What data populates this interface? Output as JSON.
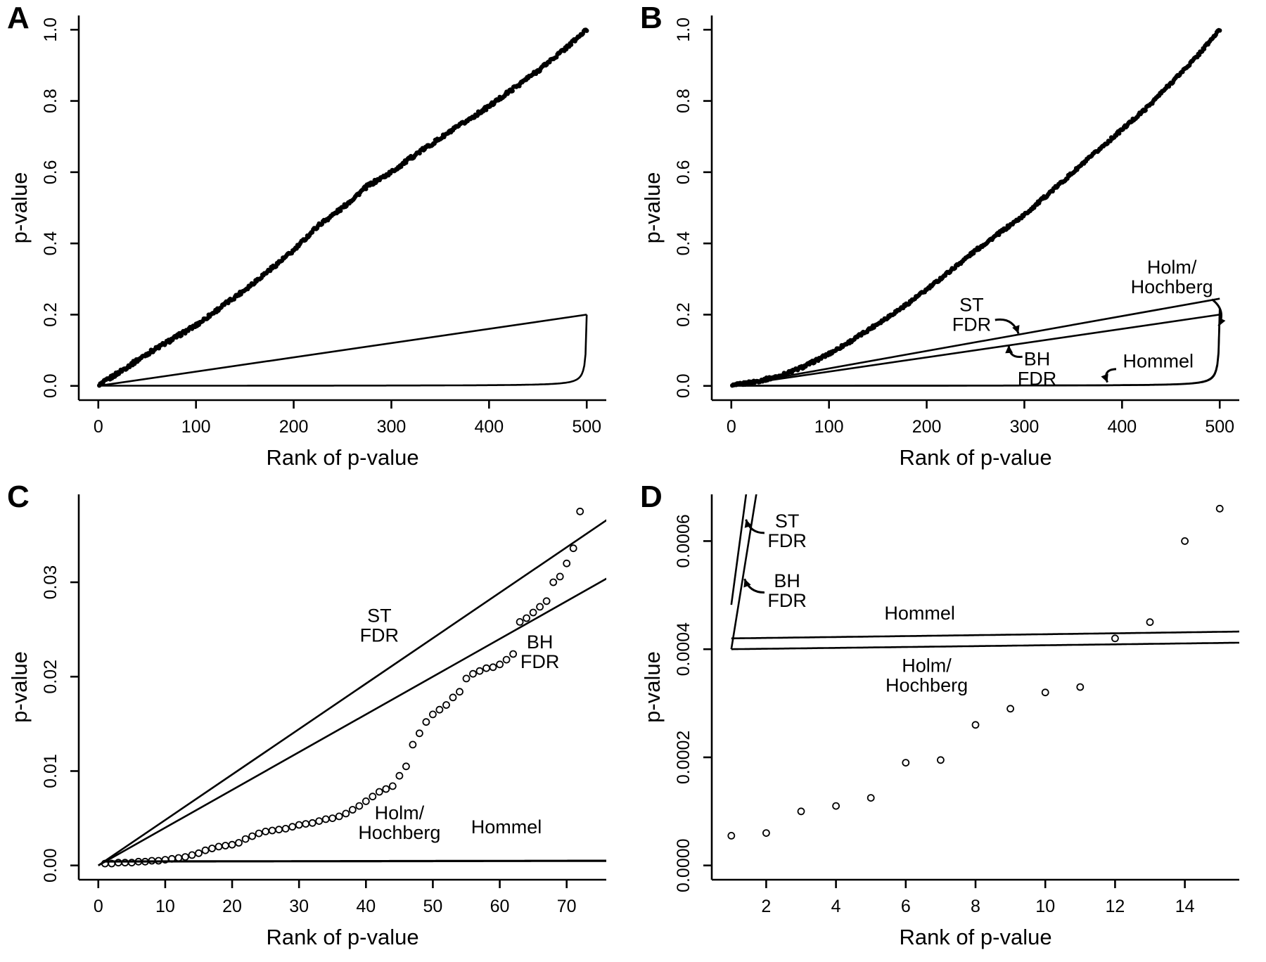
{
  "figure": {
    "background_color": "#ffffff",
    "ink_color": "#000000",
    "description": "Four-panel figure of sorted p-values versus rank with multiple-testing correction threshold lines (ST FDR, BH FDR, Holm/Hochberg, Hommel)"
  },
  "chart_data": [
    {
      "panel": "A",
      "type": "scatter",
      "title": "",
      "xlabel": "Rank of p-value",
      "ylabel": "p-value",
      "xlim": [
        0,
        500
      ],
      "ylim": [
        0,
        1
      ],
      "xticks": [
        0,
        100,
        200,
        300,
        400,
        500
      ],
      "xtick_labels": [
        "0",
        "100",
        "200",
        "300",
        "400",
        "500"
      ],
      "yticks": [
        0,
        0.2,
        0.4,
        0.6,
        0.8,
        1.0
      ],
      "ytick_labels": [
        "0.0",
        "0.2",
        "0.4",
        "0.6",
        "0.8",
        "1.0"
      ],
      "grid": false,
      "legend": "none",
      "points_dense": {
        "n": 500,
        "marker": "filled-dot",
        "jitter": 0.005,
        "anchors_x": [
          0,
          25,
          50,
          75,
          100,
          125,
          150,
          175,
          200,
          225,
          250,
          275,
          300,
          325,
          350,
          375,
          400,
          425,
          450,
          475,
          500
        ],
        "anchors_y": [
          0,
          0.045,
          0.09,
          0.13,
          0.17,
          0.22,
          0.27,
          0.325,
          0.38,
          0.45,
          0.5,
          0.56,
          0.6,
          0.65,
          0.695,
          0.74,
          0.785,
          0.835,
          0.885,
          0.94,
          1.0
        ]
      },
      "lines": [
        {
          "name": "BH FDR threshold",
          "type": "segment",
          "x": [
            0,
            500
          ],
          "y": [
            0,
            0.2
          ]
        },
        {
          "name": "Holm Hochberg Hommel threshold",
          "type": "holm",
          "alpha": 0.2,
          "m": 500,
          "xrange": [
            1,
            500
          ]
        }
      ],
      "annotations": []
    },
    {
      "panel": "B",
      "type": "scatter",
      "title": "",
      "xlabel": "Rank of p-value",
      "ylabel": "p-value",
      "xlim": [
        0,
        500
      ],
      "ylim": [
        0,
        1
      ],
      "xticks": [
        0,
        100,
        200,
        300,
        400,
        500
      ],
      "xtick_labels": [
        "0",
        "100",
        "200",
        "300",
        "400",
        "500"
      ],
      "yticks": [
        0,
        0.2,
        0.4,
        0.6,
        0.8,
        1.0
      ],
      "ytick_labels": [
        "0.0",
        "0.2",
        "0.4",
        "0.6",
        "0.8",
        "1.0"
      ],
      "grid": false,
      "legend": "none",
      "points_dense": {
        "n": 500,
        "marker": "filled-dot",
        "jitter": 0.004,
        "anchors_x": [
          0,
          25,
          50,
          75,
          100,
          125,
          150,
          175,
          200,
          225,
          250,
          275,
          300,
          325,
          350,
          375,
          400,
          425,
          450,
          475,
          500
        ],
        "anchors_y": [
          0,
          0.012,
          0.028,
          0.055,
          0.09,
          0.13,
          0.175,
          0.22,
          0.27,
          0.325,
          0.38,
          0.43,
          0.48,
          0.54,
          0.6,
          0.66,
          0.72,
          0.78,
          0.85,
          0.92,
          1.0
        ]
      },
      "lines": [
        {
          "name": "ST FDR threshold",
          "type": "segment",
          "x": [
            0,
            500
          ],
          "y": [
            0,
            0.245
          ]
        },
        {
          "name": "BH FDR threshold",
          "type": "segment",
          "x": [
            0,
            500
          ],
          "y": [
            0,
            0.2
          ]
        },
        {
          "name": "Holm Hochberg threshold",
          "type": "holm",
          "alpha": 0.2,
          "m": 500,
          "xrange": [
            1,
            500
          ]
        },
        {
          "name": "Hommel threshold",
          "type": "holm",
          "alpha": 0.215,
          "m": 500,
          "xrange": [
            1,
            500
          ]
        }
      ],
      "annotations": [
        {
          "text": "ST\nFDR",
          "x": 246,
          "y": 0.21,
          "arrow": {
            "from": [
              270,
              0.185
            ],
            "to": [
              294,
              0.147
            ],
            "bend": -16
          }
        },
        {
          "text": "BH\nFDR",
          "x": 313,
          "y": 0.058,
          "arrow": {
            "from": [
              298,
              0.082
            ],
            "to": [
              284,
              0.114
            ],
            "bend": -14
          }
        },
        {
          "text": "Holm/\nHochberg",
          "x": 451,
          "y": 0.315,
          "arrow": {
            "from": [
              492,
              0.243
            ],
            "to": [
              499,
              0.168
            ],
            "bend": -16
          }
        },
        {
          "text": "Hommel",
          "x": 437,
          "y": 0.052,
          "arrow": {
            "from": [
              394,
              0.047
            ],
            "to": [
              385,
              0.01
            ],
            "bend": 16
          }
        }
      ]
    },
    {
      "panel": "C",
      "type": "scatter",
      "title": "",
      "xlabel": "Rank of p-value",
      "ylabel": "p-value",
      "xlim": [
        0,
        73
      ],
      "ylim": [
        0,
        0.0378
      ],
      "xticks": [
        0,
        10,
        20,
        30,
        40,
        50,
        60,
        70
      ],
      "xtick_labels": [
        "0",
        "10",
        "20",
        "30",
        "40",
        "50",
        "60",
        "70"
      ],
      "yticks": [
        0,
        0.01,
        0.02,
        0.03
      ],
      "ytick_labels": [
        "0.00",
        "0.01",
        "0.02",
        "0.03"
      ],
      "grid": false,
      "legend": "none",
      "points": {
        "marker": "open-circle",
        "x": [
          1,
          2,
          3,
          4,
          5,
          6,
          7,
          8,
          9,
          10,
          11,
          12,
          13,
          14,
          15,
          16,
          17,
          18,
          19,
          20,
          21,
          22,
          23,
          24,
          25,
          26,
          27,
          28,
          29,
          30,
          31,
          32,
          33,
          34,
          35,
          36,
          37,
          38,
          39,
          40,
          41,
          42,
          43,
          44,
          45,
          46,
          47,
          48,
          49,
          50,
          51,
          52,
          53,
          54,
          55,
          56,
          57,
          58,
          59,
          60,
          61,
          62,
          63,
          64,
          65,
          66,
          67,
          68,
          69,
          70,
          71,
          72
        ],
        "y": [
          0.0002,
          0.0002,
          0.0003,
          0.0003,
          0.0003,
          0.0004,
          0.0004,
          0.0005,
          0.0005,
          0.0006,
          0.0007,
          0.0008,
          0.0009,
          0.0011,
          0.0013,
          0.0016,
          0.0018,
          0.002,
          0.0021,
          0.0022,
          0.0024,
          0.0028,
          0.0031,
          0.0034,
          0.0036,
          0.0037,
          0.0038,
          0.0039,
          0.0041,
          0.0043,
          0.0044,
          0.0045,
          0.0047,
          0.0049,
          0.005,
          0.0052,
          0.0055,
          0.0059,
          0.0063,
          0.0068,
          0.0073,
          0.0078,
          0.0081,
          0.0084,
          0.0095,
          0.0105,
          0.0128,
          0.014,
          0.0152,
          0.016,
          0.0165,
          0.017,
          0.0178,
          0.0184,
          0.0198,
          0.0203,
          0.0206,
          0.0209,
          0.021,
          0.0213,
          0.0218,
          0.0224,
          0.0258,
          0.0262,
          0.0268,
          0.0274,
          0.028,
          0.03,
          0.0306,
          0.032,
          0.0336,
          0.0375
        ]
      },
      "lines": [
        {
          "name": "ST FDR threshold",
          "type": "segment",
          "x": [
            0,
            76
          ],
          "y": [
            0,
            0.0366
          ]
        },
        {
          "name": "BH FDR threshold",
          "type": "segment",
          "x": [
            0,
            76
          ],
          "y": [
            0,
            0.0304
          ]
        },
        {
          "name": "Hommel threshold",
          "type": "holm",
          "alpha": 0.22,
          "m": 500,
          "xrange": [
            1,
            76
          ]
        },
        {
          "name": "Holm Hochberg threshold",
          "type": "holm",
          "alpha": 0.2,
          "m": 500,
          "xrange": [
            1,
            76
          ]
        }
      ],
      "annotations": [
        {
          "text": "ST\nFDR",
          "x": 42,
          "y": 0.0258
        },
        {
          "text": "BH\nFDR",
          "x": 66,
          "y": 0.023
        },
        {
          "text": "Holm/\nHochberg",
          "x": 45,
          "y": 0.0049
        },
        {
          "text": "Hommel",
          "x": 61,
          "y": 0.0034
        }
      ]
    },
    {
      "panel": "D",
      "type": "scatter",
      "title": "",
      "xlabel": "Rank of p-value",
      "ylabel": "p-value",
      "xlim": [
        1,
        15
      ],
      "ylim": [
        0,
        0.00066
      ],
      "xticks": [
        2,
        4,
        6,
        8,
        10,
        12,
        14
      ],
      "xtick_labels": [
        "2",
        "4",
        "6",
        "8",
        "10",
        "12",
        "14"
      ],
      "yticks": [
        0,
        0.0002,
        0.0004,
        0.0006
      ],
      "ytick_labels": [
        "0.0000",
        "0.0002",
        "0.0004",
        "0.0006"
      ],
      "grid": false,
      "legend": "none",
      "points": {
        "marker": "open-circle",
        "x": [
          1,
          2,
          3,
          4,
          5,
          6,
          7,
          8,
          9,
          10,
          11,
          12,
          13,
          14,
          15
        ],
        "y": [
          5.5e-05,
          6e-05,
          0.0001,
          0.00011,
          0.000125,
          0.00019,
          0.000195,
          0.00026,
          0.00029,
          0.00032,
          0.00033,
          0.00042,
          0.00045,
          0.0006,
          0.00066
        ]
      },
      "lines": [
        {
          "name": "ST FDR threshold",
          "type": "segment",
          "x": [
            1,
            1.65
          ],
          "y": [
            0.000482,
            0.000795
          ]
        },
        {
          "name": "BH FDR threshold",
          "type": "segment",
          "x": [
            1,
            1.95
          ],
          "y": [
            0.0004,
            0.00078
          ]
        },
        {
          "name": "Hommel threshold",
          "type": "holm",
          "alpha": 0.21,
          "m": 500,
          "xrange": [
            1,
            15.6
          ]
        },
        {
          "name": "Holm Hochberg threshold",
          "type": "holm",
          "alpha": 0.2,
          "m": 500,
          "xrange": [
            1,
            15.6
          ]
        }
      ],
      "annotations": [
        {
          "text": "ST\nFDR",
          "x": 2.6,
          "y": 0.000625,
          "arrow": {
            "from": [
              1.95,
              0.000615
            ],
            "to": [
              1.42,
              0.00064
            ],
            "bend": -12
          }
        },
        {
          "text": "BH\nFDR",
          "x": 2.6,
          "y": 0.000515,
          "arrow": {
            "from": [
              1.95,
              0.000505
            ],
            "to": [
              1.38,
              0.00053
            ],
            "bend": -12
          }
        },
        {
          "text": "Hommel",
          "x": 6.4,
          "y": 0.000455
        },
        {
          "text": "Holm/\nHochberg",
          "x": 6.6,
          "y": 0.000358
        }
      ]
    }
  ]
}
